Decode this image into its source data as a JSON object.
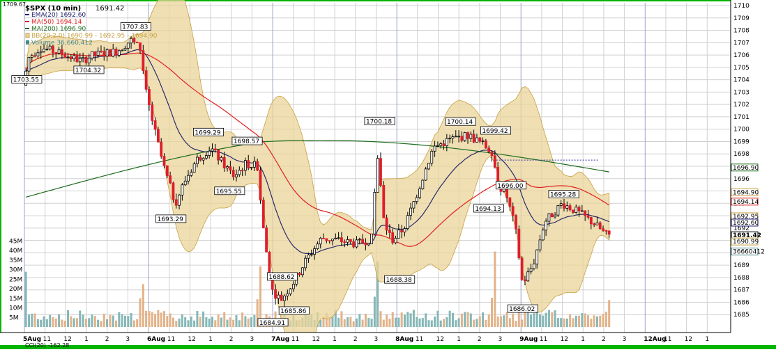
{
  "header": {
    "symbol": "$SPX (10 min)",
    "last": "1691.42",
    "corner_value": "1709.67"
  },
  "legend": [
    {
      "text": "EMA(20) 1692.60",
      "color": "#1b1b6e",
      "icon": "line-swatch"
    },
    {
      "text": "MA(50) 1694.14",
      "color": "#e02020",
      "icon": "line-swatch"
    },
    {
      "text": "MA(200) 1696.90",
      "color": "#1a6b1a",
      "icon": "line-swatch"
    },
    {
      "text": "BB(20,2.0) 1690.99 - 1692.95 - 1694.90",
      "color": "#c8a040",
      "icon": "band-swatch"
    },
    {
      "text": "Volume 36,660,412",
      "color": "#4a8a8a",
      "icon": "volume-swatch"
    }
  ],
  "bottom_indicator": {
    "text": "CCI(20) -162.28"
  },
  "colors": {
    "up": "#ffffff",
    "down": "#dd1f2a",
    "band": "#e9d49a",
    "ema": "#2a2a6a",
    "ma50": "#e02020",
    "ma200": "#1a6b1a",
    "grid": "#d0d0d0",
    "frame": "#00b400"
  },
  "chart_data": {
    "type": "candlestick",
    "y_range": [
      1684,
      1710
    ],
    "y_ticks": [
      1685,
      1686,
      1687,
      1688,
      1689,
      1690,
      1691,
      1692,
      1693,
      1694,
      1695,
      1696,
      1697,
      1698,
      1699,
      1700,
      1701,
      1702,
      1703,
      1704,
      1705,
      1706,
      1707,
      1708,
      1709,
      1710
    ],
    "volume_ticks": [
      "45M",
      "40M",
      "35M",
      "30M",
      "25M",
      "20M",
      "15M",
      "10M",
      "5M"
    ],
    "x_labels": [
      "5Aug",
      "11",
      "12",
      "1",
      "2",
      "3",
      "6Aug",
      "11",
      "12",
      "1",
      "2",
      "3",
      "7Aug",
      "11",
      "12",
      "1",
      "2",
      "3",
      "8Aug",
      "11",
      "12",
      "1",
      "2",
      "3",
      "9Aug",
      "11",
      "12",
      "1",
      "2",
      "3",
      "12Aug",
      "11",
      "12",
      "1"
    ],
    "x_label_dates": [
      "5Aug",
      "6Aug",
      "7Aug",
      "8Aug",
      "9Aug",
      "12Aug"
    ],
    "annotations": [
      {
        "text": "1703.55",
        "x_session": 0.02,
        "y": 1703.55
      },
      {
        "text": "1704.32",
        "x_session": 0.55,
        "y": 1704.32
      },
      {
        "text": "1707.83",
        "x_session": 0.95,
        "y": 1707.83
      },
      {
        "text": "1699.29",
        "x_session": 1.57,
        "y": 1699.29
      },
      {
        "text": "1698.57",
        "x_session": 1.9,
        "y": 1698.57
      },
      {
        "text": "1695.55",
        "x_session": 1.75,
        "y": 1695.55
      },
      {
        "text": "1693.29",
        "x_session": 1.25,
        "y": 1693.29
      },
      {
        "text": "1688.62",
        "x_session": 2.2,
        "y": 1688.62
      },
      {
        "text": "1684.91",
        "x_session": 2.12,
        "y": 1684.91
      },
      {
        "text": "1685.86",
        "x_session": 2.3,
        "y": 1685.86
      },
      {
        "text": "1700.18",
        "x_session": 3.03,
        "y": 1700.18
      },
      {
        "text": "1688.38",
        "x_session": 3.2,
        "y": 1688.38
      },
      {
        "text": "1700.14",
        "x_session": 3.72,
        "y": 1700.14
      },
      {
        "text": "1699.42",
        "x_session": 4.02,
        "y": 1699.42
      },
      {
        "text": "1696.00",
        "x_session": 4.15,
        "y": 1696.0
      },
      {
        "text": "1694.13",
        "x_session": 3.96,
        "y": 1694.13
      },
      {
        "text": "1686.02",
        "x_session": 4.25,
        "y": 1686.02
      },
      {
        "text": "1695.28",
        "x_session": 4.6,
        "y": 1695.28
      }
    ],
    "right_markers": [
      {
        "text": "1696.90",
        "y": 1696.9,
        "color": "#1a6b1a"
      },
      {
        "text": "1694.90",
        "y": 1694.9,
        "color": "#c8a040"
      },
      {
        "text": "1694.14",
        "y": 1694.14,
        "color": "#e02020"
      },
      {
        "text": "1692.95",
        "y": 1692.95,
        "color": "#c8a040"
      },
      {
        "text": "1692.60",
        "y": 1692.6,
        "color": "#1b1b6e"
      },
      {
        "text": "1691.42",
        "y": 1691.42,
        "color": "#000000"
      },
      {
        "text": "1690.99",
        "y": 1690.99,
        "color": "#c8a040"
      },
      {
        "text": "36660412",
        "y": 1690.1,
        "color": "#4a8a8a"
      }
    ],
    "reference_line": {
      "y": 1697.5,
      "from_session": 4.0,
      "to_session": 4.9
    },
    "sessions": 6,
    "bars_per_session": 39,
    "volume_max_millions": 48
  }
}
